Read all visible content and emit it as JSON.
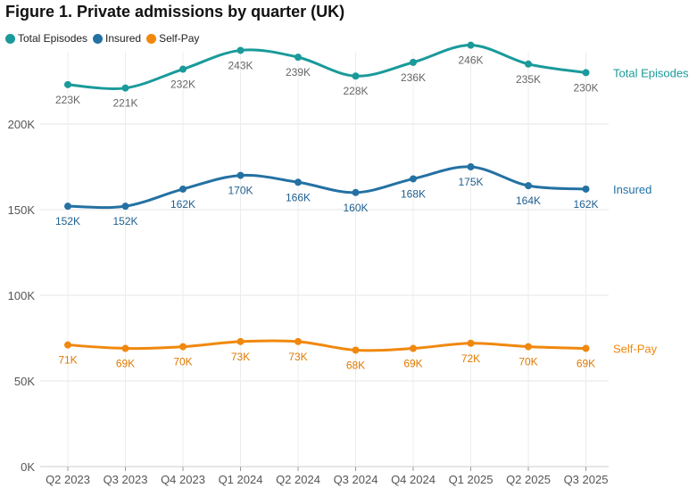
{
  "chart_data": {
    "type": "line",
    "title": "Figure 1. Private admissions by quarter (UK)",
    "categories": [
      "Q2 2023",
      "Q3 2023",
      "Q4 2023",
      "Q1 2024",
      "Q2 2024",
      "Q3 2024",
      "Q4 2024",
      "Q1 2025",
      "Q2 2025",
      "Q3 2025"
    ],
    "ylim": [
      0,
      250000
    ],
    "yticks": [
      {
        "value": 0,
        "label": "0K"
      },
      {
        "value": 50000,
        "label": "50K"
      },
      {
        "value": 100000,
        "label": "100K"
      },
      {
        "value": 150000,
        "label": "150K"
      },
      {
        "value": 200000,
        "label": "200K"
      }
    ],
    "xlabel": "",
    "ylabel": "",
    "legend_position": "top-left",
    "series": [
      {
        "name": "Total Episodes",
        "color": "#1a9a9a",
        "values": [
          223000,
          221000,
          232000,
          243000,
          239000,
          228000,
          236000,
          246000,
          235000,
          230000
        ],
        "labels": [
          "223K",
          "221K",
          "232K",
          "243K",
          "239K",
          "228K",
          "236K",
          "246K",
          "235K",
          "230K"
        ],
        "label_color": "#666666",
        "label_position": "below"
      },
      {
        "name": "Insured",
        "color": "#2471a3",
        "values": [
          152000,
          152000,
          162000,
          170000,
          166000,
          160000,
          168000,
          175000,
          164000,
          162000
        ],
        "labels": [
          "152K",
          "152K",
          "162K",
          "170K",
          "166K",
          "160K",
          "168K",
          "175K",
          "164K",
          "162K"
        ],
        "label_color": "#1f5f8f",
        "label_position": "below"
      },
      {
        "name": "Self-Pay",
        "color": "#f0880e",
        "values": [
          71000,
          69000,
          70000,
          73000,
          73000,
          68000,
          69000,
          72000,
          70000,
          69000
        ],
        "labels": [
          "71K",
          "69K",
          "70K",
          "73K",
          "73K",
          "68K",
          "69K",
          "72K",
          "70K",
          "69K"
        ],
        "label_color": "#e07a00",
        "label_position": "below"
      }
    ]
  }
}
